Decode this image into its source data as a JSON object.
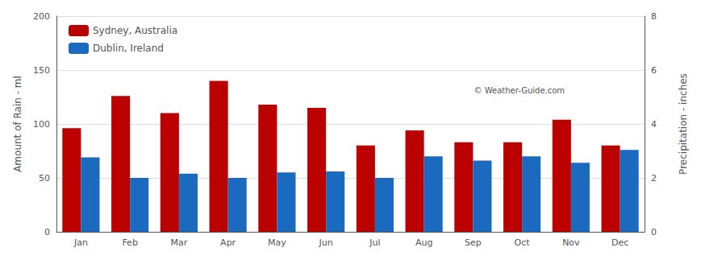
{
  "chart_data": {
    "type": "bar",
    "categories": [
      "Jan",
      "Feb",
      "Mar",
      "Apr",
      "May",
      "Jun",
      "Jul",
      "Aug",
      "Sep",
      "Oct",
      "Nov",
      "Dec"
    ],
    "series": [
      {
        "name": "Sydney, Australia",
        "color": "#bb0000",
        "values": [
          96,
          126,
          110,
          140,
          118,
          115,
          80,
          94,
          83,
          83,
          104,
          80
        ]
      },
      {
        "name": "Dublin, Ireland",
        "color": "#1a6abf",
        "values": [
          69,
          50,
          54,
          50,
          55,
          56,
          50,
          70,
          66,
          70,
          64,
          76
        ]
      }
    ],
    "ylabel": "Amount of Rain - ml",
    "y2label": "Precipitation - inches",
    "ylim": [
      0,
      200
    ],
    "yticks": [
      0,
      50,
      100,
      150,
      200
    ],
    "y2lim": [
      0,
      8
    ],
    "y2ticks": [
      0,
      2,
      4,
      6,
      8
    ],
    "grid": true,
    "legend": "upper left",
    "annotations": [
      "© Weather-Guide.com"
    ]
  }
}
